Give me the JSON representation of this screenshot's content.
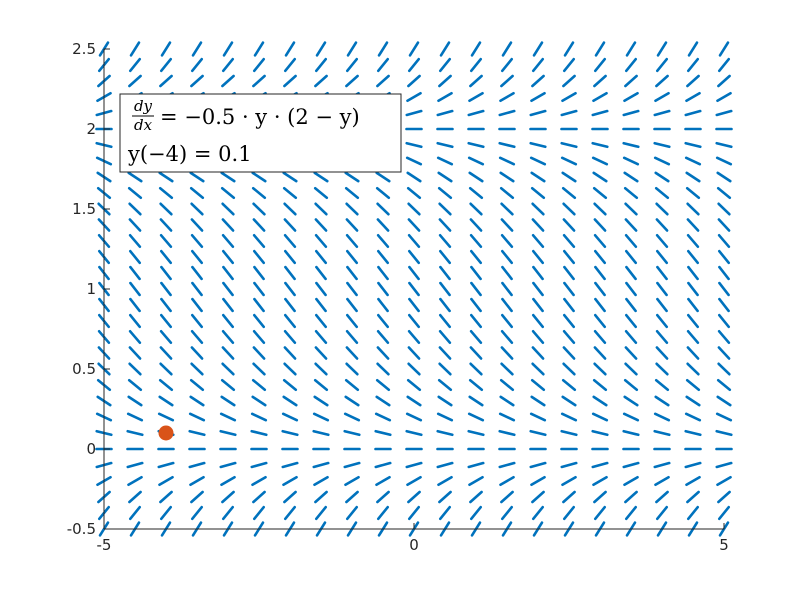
{
  "chart_data": {
    "type": "scatter",
    "subtype": "slope-field",
    "equation": {
      "dy": "dy",
      "dx": "dx",
      "rhs": "= −0.5 · y · (2 − y)"
    },
    "initial_condition": "y(−4) = 0.1",
    "slope_function": {
      "k": -0.5,
      "carrying": 2
    },
    "grid": false,
    "xlim": [
      -5,
      5
    ],
    "ylim": [
      -0.5,
      2.5
    ],
    "x_ticks": [
      {
        "value": -5,
        "label": "-5"
      },
      {
        "value": 0,
        "label": "0"
      },
      {
        "value": 5,
        "label": "5"
      }
    ],
    "y_ticks": [
      {
        "value": -0.5,
        "label": "-0.5"
      },
      {
        "value": 0,
        "label": "0"
      },
      {
        "value": 0.5,
        "label": "0.5"
      },
      {
        "value": 1,
        "label": "1"
      },
      {
        "value": 1.5,
        "label": "1.5"
      },
      {
        "value": 2,
        "label": "2"
      },
      {
        "value": 2.5,
        "label": "2.5"
      }
    ],
    "field_x_range": [
      -5,
      5
    ],
    "field_y_range": [
      -0.5,
      2.5
    ],
    "field_x_count": 21,
    "field_y_count": 31,
    "point": {
      "x": -4,
      "y": 0.1
    },
    "legend_position": "top-left",
    "colors": {
      "field": "#0072BD",
      "point": "#D95319",
      "axis": "#262626"
    }
  }
}
